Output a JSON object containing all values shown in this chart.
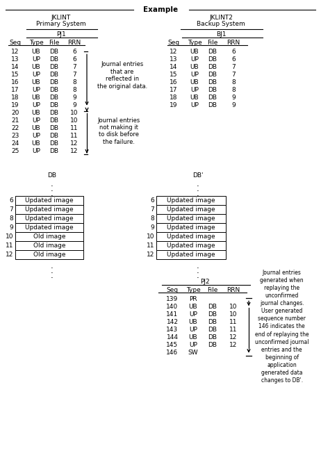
{
  "title": "Example",
  "pj1_label": "PJ1",
  "bj1_label": "BJ1",
  "pj2_label": "PJ2",
  "col_headers": [
    "Seq",
    "Type",
    "File",
    "RRN"
  ],
  "pj1_rows": [
    [
      "12",
      "UB",
      "DB",
      "6"
    ],
    [
      "13",
      "UP",
      "DB",
      "6"
    ],
    [
      "14",
      "UB",
      "DB",
      "7"
    ],
    [
      "15",
      "UP",
      "DB",
      "7"
    ],
    [
      "16",
      "UB",
      "DB",
      "8"
    ],
    [
      "17",
      "UP",
      "DB",
      "8"
    ],
    [
      "18",
      "UB",
      "DB",
      "9"
    ],
    [
      "19",
      "UP",
      "DB",
      "9"
    ],
    [
      "20",
      "UB",
      "DB",
      "10"
    ],
    [
      "21",
      "UP",
      "DB",
      "10"
    ],
    [
      "22",
      "UB",
      "DB",
      "11"
    ],
    [
      "23",
      "UP",
      "DB",
      "11"
    ],
    [
      "24",
      "UB",
      "DB",
      "12"
    ],
    [
      "25",
      "UP",
      "DB",
      "12"
    ]
  ],
  "bj1_rows": [
    [
      "12",
      "UB",
      "DB",
      "6"
    ],
    [
      "13",
      "UP",
      "DB",
      "6"
    ],
    [
      "14",
      "UB",
      "DB",
      "7"
    ],
    [
      "15",
      "UP",
      "DB",
      "7"
    ],
    [
      "16",
      "UB",
      "DB",
      "8"
    ],
    [
      "17",
      "UP",
      "DB",
      "8"
    ],
    [
      "18",
      "UB",
      "DB",
      "9"
    ],
    [
      "19",
      "UP",
      "DB",
      "9"
    ]
  ],
  "pj2_rows": [
    [
      "139",
      "PR",
      "",
      ""
    ],
    [
      "140",
      "UB",
      "DB",
      "10"
    ],
    [
      "141",
      "UP",
      "DB",
      "10"
    ],
    [
      "142",
      "UB",
      "DB",
      "11"
    ],
    [
      "143",
      "UP",
      "DB",
      "11"
    ],
    [
      "144",
      "UB",
      "DB",
      "12"
    ],
    [
      "145",
      "UP",
      "DB",
      "12"
    ],
    [
      "146",
      "SW",
      "",
      ""
    ]
  ],
  "db_label": "DB",
  "dbprime_label": "DB'",
  "db_rows": [
    [
      "6",
      "Updated image"
    ],
    [
      "7",
      "Updated image"
    ],
    [
      "8",
      "Updated image"
    ],
    [
      "9",
      "Updated image"
    ],
    [
      "10",
      "Old image"
    ],
    [
      "11",
      "Old image"
    ],
    [
      "12",
      "Old image"
    ]
  ],
  "dbprime_rows": [
    [
      "6",
      "Updated image"
    ],
    [
      "7",
      "Updated image"
    ],
    [
      "8",
      "Updated image"
    ],
    [
      "9",
      "Updated image"
    ],
    [
      "10",
      "Updated image"
    ],
    [
      "11",
      "Updated image"
    ],
    [
      "12",
      "Updated image"
    ]
  ],
  "annotation1": "Journal entries\nthat are\nreflected in\nthe original data.",
  "annotation2": "Journal entries\nnot making it\nto disk before\nthe failure.",
  "annotation3": "Journal entries\ngenerated when\nreplaying the\nunconfirmed\njournal changes.\nUser generated\nsequence number\n146 indicates the\nend of replaying the\nunconfirmed journal\nentries and the\nbeginning of\napplication\ngenerated data\nchanges to DB'.",
  "bg_color": "#ffffff"
}
